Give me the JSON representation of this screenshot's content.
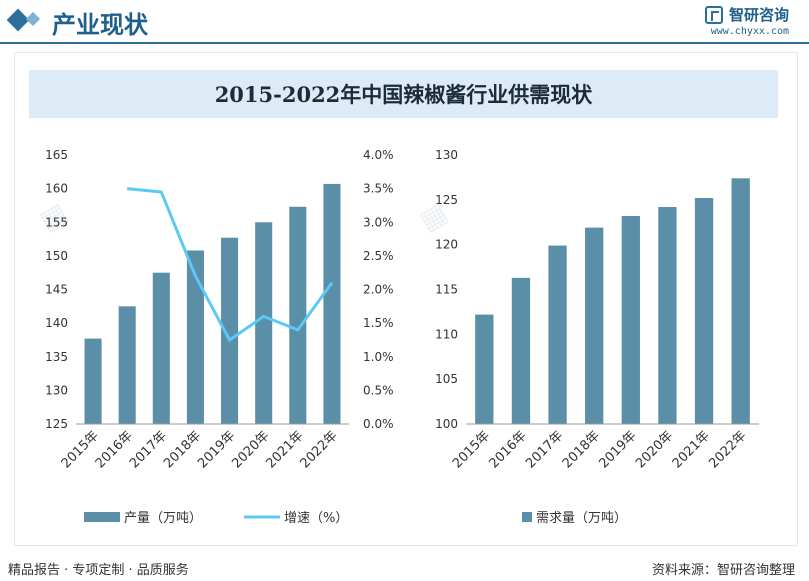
{
  "header": {
    "title": "产业现状",
    "brand_name": "智研咨询",
    "brand_url": "www.chyxx.com"
  },
  "main_title": "2015-2022年中国辣椒酱行业供需现状",
  "footer": {
    "left": "精品报告 · 专项定制 · 品质服务",
    "right": "资料来源：智研咨询整理"
  },
  "chart_data": [
    {
      "type": "bar+line",
      "categories": [
        "2015年",
        "2016年",
        "2017年",
        "2018年",
        "2019年",
        "2020年",
        "2021年",
        "2022年"
      ],
      "series": [
        {
          "name": "产量（万吨）",
          "type": "bar",
          "axis": "left",
          "color": "#5b8fa8",
          "values": [
            137.7,
            142.5,
            147.5,
            150.8,
            152.7,
            155.0,
            157.3,
            160.7
          ]
        },
        {
          "name": "增速（%）",
          "type": "line",
          "axis": "right",
          "color": "#5bc8f5",
          "values": [
            null,
            3.5,
            3.45,
            2.2,
            1.25,
            1.6,
            1.4,
            2.1
          ]
        }
      ],
      "y_left": {
        "min": 125,
        "max": 165,
        "ticks": [
          "125",
          "130",
          "135",
          "140",
          "145",
          "150",
          "155",
          "160",
          "165"
        ]
      },
      "y_right": {
        "min": 0,
        "max": 4,
        "ticks": [
          "0.0%",
          "0.5%",
          "1.0%",
          "1.5%",
          "2.0%",
          "2.5%",
          "3.0%",
          "3.5%",
          "4.0%"
        ]
      },
      "legend_position": "bottom"
    },
    {
      "type": "bar",
      "categories": [
        "2015年",
        "2016年",
        "2017年",
        "2018年",
        "2019年",
        "2020年",
        "2021年",
        "2022年"
      ],
      "series": [
        {
          "name": "需求量（万吨）",
          "type": "bar",
          "axis": "left",
          "color": "#5b8fa8",
          "values": [
            112.2,
            116.3,
            119.9,
            121.9,
            123.2,
            124.2,
            125.2,
            127.4
          ]
        }
      ],
      "y_left": {
        "min": 100,
        "max": 130,
        "ticks": [
          "100",
          "105",
          "110",
          "115",
          "120",
          "125",
          "130"
        ]
      },
      "legend_position": "bottom"
    }
  ]
}
